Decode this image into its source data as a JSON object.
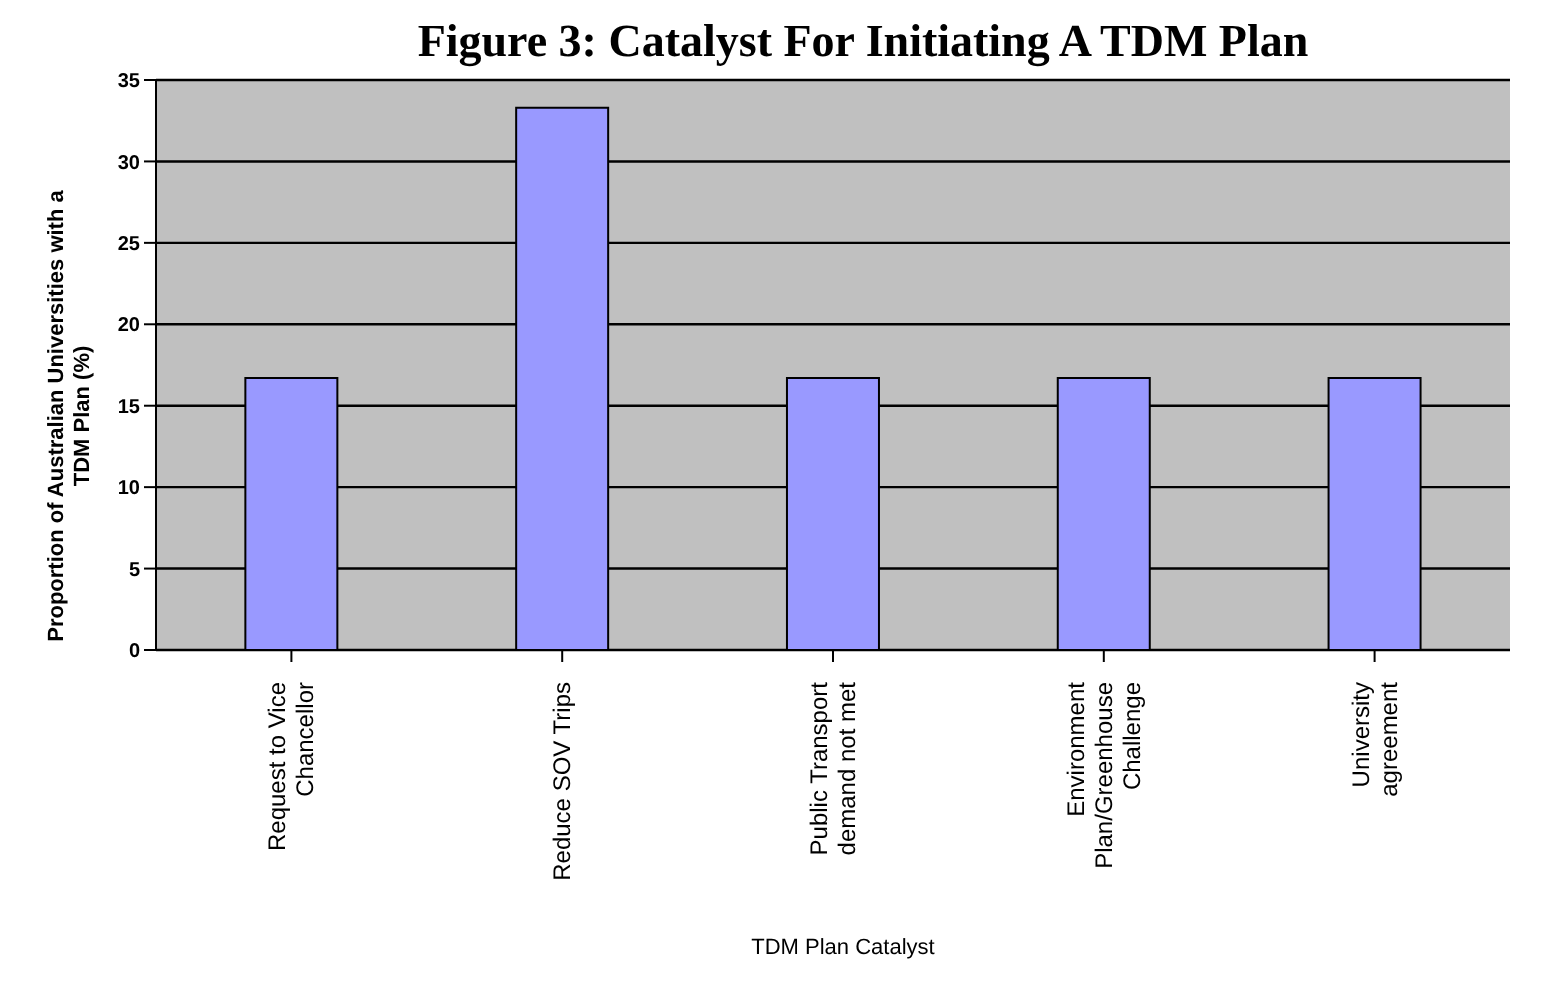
{
  "chart_data": {
    "type": "bar",
    "title": "Figure 3: Catalyst For Initiating A TDM Plan",
    "xlabel": "TDM Plan Catalyst",
    "ylabel": "Proportion of Australian Universities with a TDM Plan (%)",
    "categories": [
      "Request to Vice Chancellor",
      "Reduce SOV Trips",
      "Public Transport demand not met",
      "Environment Plan/Greenhouse Challenge",
      "University agreement"
    ],
    "values": [
      16.7,
      33.3,
      16.7,
      16.7,
      16.7
    ],
    "color": "#9999ff",
    "ylim": [
      0,
      35
    ],
    "yticks": [
      0,
      5,
      10,
      15,
      20,
      25,
      30,
      35
    ],
    "grid": "y",
    "legend": false
  }
}
